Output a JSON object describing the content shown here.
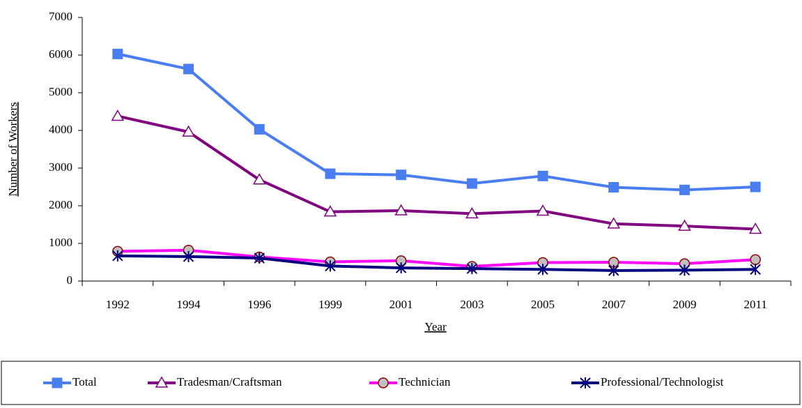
{
  "chart_data": {
    "type": "line",
    "x_label": "Year",
    "y_label": "Number of Workers",
    "categories": [
      "1992",
      "1994",
      "1996",
      "1999",
      "2001",
      "2003",
      "2005",
      "2007",
      "2009",
      "2011"
    ],
    "series": [
      {
        "name": "Total",
        "color": "#4a7ef0",
        "marker": "square",
        "marker_fill": "#4a7ef0",
        "values": [
          6030,
          5630,
          4030,
          2850,
          2820,
          2590,
          2790,
          2490,
          2420,
          2500
        ]
      },
      {
        "name": "Tradesman/Craftsman",
        "color": "#800080",
        "marker": "triangle",
        "marker_fill": "#ffffff",
        "values": [
          4380,
          3960,
          2690,
          1840,
          1870,
          1790,
          1860,
          1520,
          1460,
          1380
        ]
      },
      {
        "name": "Technician",
        "color": "#ff00ff",
        "marker": "circle",
        "marker_fill": "#c0c0c0",
        "values": [
          790,
          820,
          640,
          510,
          540,
          390,
          490,
          500,
          460,
          570
        ]
      },
      {
        "name": "Professional/Technologist",
        "color": "#000080",
        "marker": "asterisk",
        "marker_fill": "#000080",
        "values": [
          670,
          650,
          610,
          400,
          350,
          330,
          310,
          280,
          290,
          310
        ]
      }
    ],
    "ylim": [
      0,
      7000
    ],
    "yticks": [
      0,
      1000,
      2000,
      3000,
      4000,
      5000,
      6000,
      7000
    ],
    "grid": false,
    "legend": "bottom"
  }
}
